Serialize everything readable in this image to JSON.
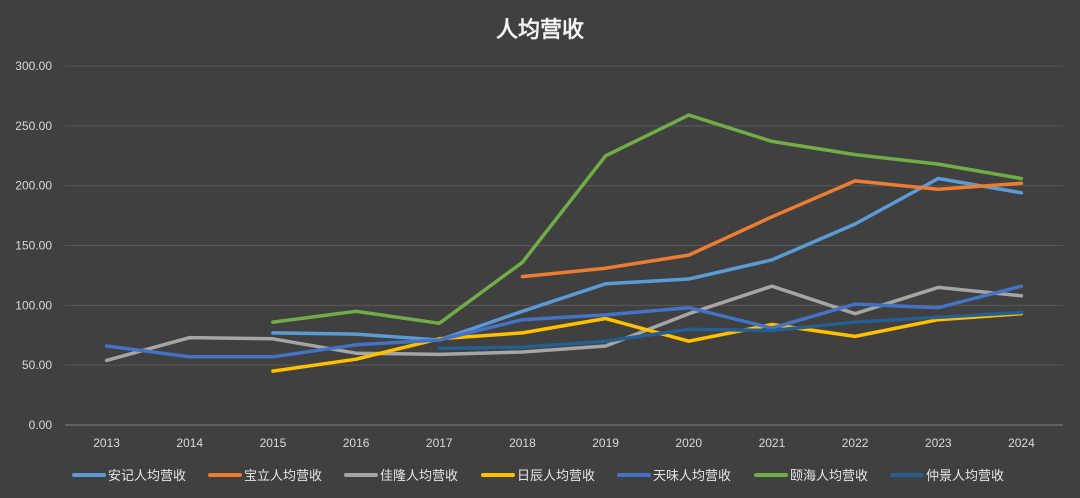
{
  "chart_data": {
    "type": "line",
    "title": "人均营收",
    "xlabel": "",
    "ylabel": "",
    "categories": [
      "2013",
      "2014",
      "2015",
      "2016",
      "2017",
      "2018",
      "2019",
      "2020",
      "2021",
      "2022",
      "2023",
      "2024"
    ],
    "ylim": [
      0,
      300
    ],
    "y_ticks": [
      "0.00",
      "50.00",
      "100.00",
      "150.00",
      "200.00",
      "250.00",
      "300.00"
    ],
    "grid": true,
    "legend_position": "bottom",
    "background": "#404040",
    "series": [
      {
        "name": "安记人均营收",
        "color": "#5b9bd5",
        "values": [
          null,
          null,
          77,
          76,
          71,
          95,
          118,
          122,
          138,
          168,
          206,
          194
        ]
      },
      {
        "name": "宝立人均营收",
        "color": "#ed7d31",
        "values": [
          null,
          null,
          null,
          null,
          null,
          124,
          131,
          142,
          174,
          204,
          197,
          202
        ]
      },
      {
        "name": "佳隆人均营收",
        "color": "#a5a5a5",
        "values": [
          54,
          73,
          72,
          60,
          59,
          61,
          66,
          93,
          116,
          93,
          115,
          108
        ]
      },
      {
        "name": "日辰人均营收",
        "color": "#ffc000",
        "values": [
          null,
          null,
          45,
          55,
          72,
          77,
          89,
          70,
          84,
          74,
          88,
          93
        ]
      },
      {
        "name": "天味人均营收",
        "color": "#4472c4",
        "values": [
          66,
          57,
          57,
          67,
          71,
          88,
          92,
          98,
          81,
          101,
          98,
          116
        ]
      },
      {
        "name": "颐海人均营收",
        "color": "#70ad47",
        "values": [
          null,
          null,
          86,
          95,
          85,
          136,
          225,
          259,
          237,
          226,
          218,
          206
        ]
      },
      {
        "name": "仲景人均营收",
        "color": "#255e91",
        "values": [
          null,
          null,
          null,
          null,
          64,
          65,
          70,
          80,
          79,
          86,
          90,
          94
        ]
      }
    ]
  }
}
